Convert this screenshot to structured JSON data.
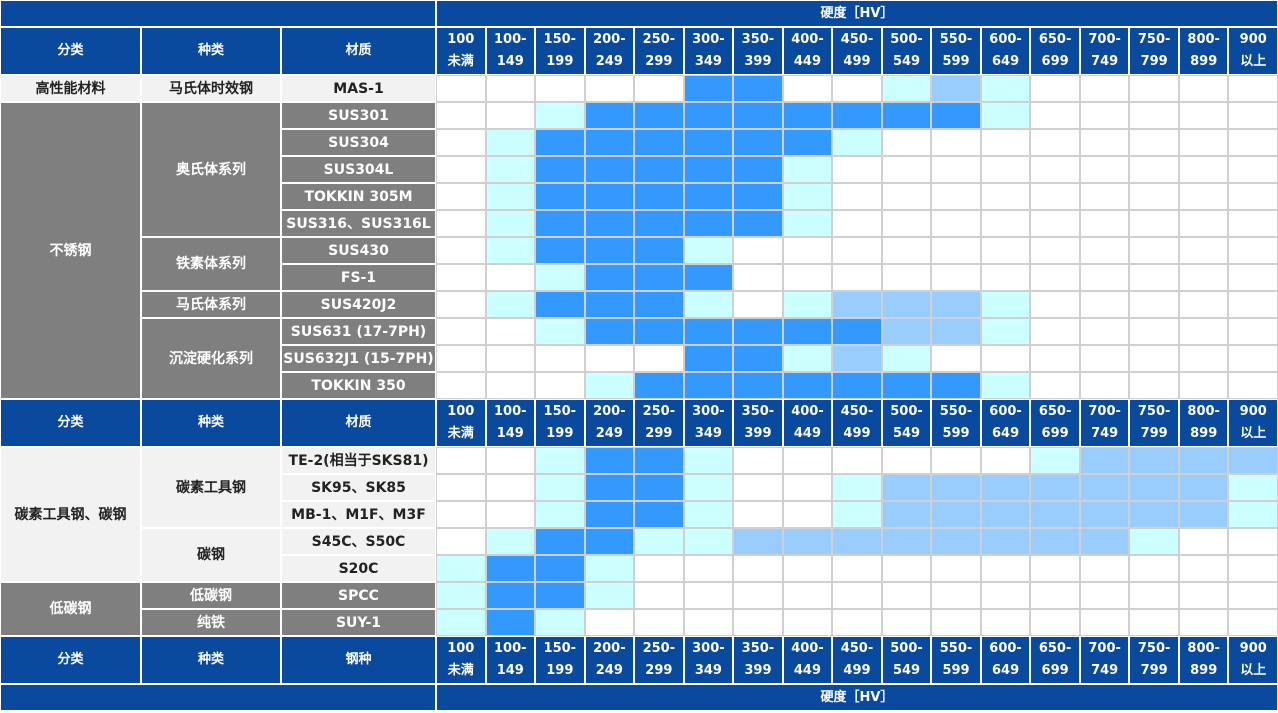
{
  "top_title": "硬度［HV］",
  "bottom_title": "硬度［HV］",
  "blocks": [
    {
      "header": {
        "category": "分类",
        "kind": "种类",
        "material": "材质",
        "ranges": [
          [
            "100",
            "未满"
          ],
          [
            "100-",
            "149"
          ],
          [
            "150-",
            "199"
          ],
          [
            "200-",
            "249"
          ],
          [
            "250-",
            "299"
          ],
          [
            "300-",
            "349"
          ],
          [
            "350-",
            "399"
          ],
          [
            "400-",
            "449"
          ],
          [
            "450-",
            "499"
          ],
          [
            "500-",
            "549"
          ],
          [
            "550-",
            "599"
          ],
          [
            "600-",
            "649"
          ],
          [
            "650-",
            "699"
          ],
          [
            "700-",
            "749"
          ],
          [
            "750-",
            "799"
          ],
          [
            "800-",
            "899"
          ],
          [
            "900",
            "以上"
          ]
        ]
      },
      "groups": [
        {
          "name": "高性能材料",
          "color": "#f2f2f2",
          "subgroups": [
            {
              "name": "马氏体时效钢",
              "rows": [
                {
                  "material": "MAS-1",
                  "cells": [
                    "#fff",
                    "#fff",
                    "#fff",
                    "#fff",
                    "#fff",
                    "#39f",
                    "#39f",
                    "#fff",
                    "#fff",
                    "#cff",
                    "#9cf",
                    "#cff",
                    "#fff",
                    "#fff",
                    "#fff",
                    "#fff",
                    "#fff"
                  ]
                }
              ]
            }
          ]
        },
        {
          "name": "不锈钢",
          "color": "#7f7f7f",
          "subgroups": [
            {
              "name": "奥氏体系列",
              "rows": [
                {
                  "material": "SUS301",
                  "cells": [
                    "#fff",
                    "#fff",
                    "#cff",
                    "#39f",
                    "#39f",
                    "#39f",
                    "#39f",
                    "#39f",
                    "#39f",
                    "#39f",
                    "#39f",
                    "#cff",
                    "#fff",
                    "#fff",
                    "#fff",
                    "#fff",
                    "#fff"
                  ]
                },
                {
                  "material": "SUS304",
                  "cells": [
                    "#fff",
                    "#cff",
                    "#39f",
                    "#39f",
                    "#39f",
                    "#39f",
                    "#39f",
                    "#39f",
                    "#cff",
                    "#fff",
                    "#fff",
                    "#fff",
                    "#fff",
                    "#fff",
                    "#fff",
                    "#fff",
                    "#fff"
                  ]
                },
                {
                  "material": "SUS304L",
                  "cells": [
                    "#fff",
                    "#cff",
                    "#39f",
                    "#39f",
                    "#39f",
                    "#39f",
                    "#39f",
                    "#cff",
                    "#fff",
                    "#fff",
                    "#fff",
                    "#fff",
                    "#fff",
                    "#fff",
                    "#fff",
                    "#fff",
                    "#fff"
                  ]
                },
                {
                  "material": "TOKKIN 305M",
                  "cells": [
                    "#fff",
                    "#cff",
                    "#39f",
                    "#39f",
                    "#39f",
                    "#39f",
                    "#39f",
                    "#cff",
                    "#fff",
                    "#fff",
                    "#fff",
                    "#fff",
                    "#fff",
                    "#fff",
                    "#fff",
                    "#fff",
                    "#fff"
                  ]
                },
                {
                  "material": "SUS316、SUS316L",
                  "cells": [
                    "#fff",
                    "#cff",
                    "#39f",
                    "#39f",
                    "#39f",
                    "#39f",
                    "#39f",
                    "#cff",
                    "#fff",
                    "#fff",
                    "#fff",
                    "#fff",
                    "#fff",
                    "#fff",
                    "#fff",
                    "#fff",
                    "#fff"
                  ]
                }
              ]
            },
            {
              "name": "铁素体系列",
              "rows": [
                {
                  "material": "SUS430",
                  "cells": [
                    "#fff",
                    "#cff",
                    "#39f",
                    "#39f",
                    "#39f",
                    "#cff",
                    "#fff",
                    "#fff",
                    "#fff",
                    "#fff",
                    "#fff",
                    "#fff",
                    "#fff",
                    "#fff",
                    "#fff",
                    "#fff",
                    "#fff"
                  ]
                },
                {
                  "material": "FS-1",
                  "cells": [
                    "#fff",
                    "#fff",
                    "#cff",
                    "#39f",
                    "#39f",
                    "#39f",
                    "#fff",
                    "#fff",
                    "#fff",
                    "#fff",
                    "#fff",
                    "#fff",
                    "#fff",
                    "#fff",
                    "#fff",
                    "#fff",
                    "#fff"
                  ]
                }
              ]
            },
            {
              "name": "马氏体系列",
              "rows": [
                {
                  "material": "SUS420J2",
                  "cells": [
                    "#fff",
                    "#cff",
                    "#39f",
                    "#39f",
                    "#39f",
                    "#cff",
                    "#fff",
                    "#cff",
                    "#9cf",
                    "#9cf",
                    "#9cf",
                    "#cff",
                    "#fff",
                    "#fff",
                    "#fff",
                    "#fff",
                    "#fff"
                  ]
                }
              ]
            },
            {
              "name": "沉淀硬化系列",
              "rows": [
                {
                  "material": "SUS631 (17-7PH)",
                  "cells": [
                    "#fff",
                    "#fff",
                    "#cff",
                    "#39f",
                    "#39f",
                    "#39f",
                    "#39f",
                    "#39f",
                    "#39f",
                    "#9cf",
                    "#9cf",
                    "#cff",
                    "#fff",
                    "#fff",
                    "#fff",
                    "#fff",
                    "#fff"
                  ]
                },
                {
                  "material": "SUS632J1 (15-7PH)",
                  "cells": [
                    "#fff",
                    "#fff",
                    "#fff",
                    "#fff",
                    "#fff",
                    "#39f",
                    "#39f",
                    "#cff",
                    "#9cf",
                    "#cff",
                    "#fff",
                    "#fff",
                    "#fff",
                    "#fff",
                    "#fff",
                    "#fff",
                    "#fff"
                  ]
                },
                {
                  "material": "TOKKIN 350",
                  "cells": [
                    "#fff",
                    "#fff",
                    "#fff",
                    "#cff",
                    "#39f",
                    "#39f",
                    "#39f",
                    "#39f",
                    "#39f",
                    "#39f",
                    "#39f",
                    "#cff",
                    "#fff",
                    "#fff",
                    "#fff",
                    "#fff",
                    "#fff"
                  ]
                }
              ]
            }
          ]
        }
      ]
    },
    {
      "header": {
        "category": "分类",
        "kind": "种类",
        "material": "材质",
        "ranges": [
          [
            "100",
            "未满"
          ],
          [
            "100-",
            "149"
          ],
          [
            "150-",
            "199"
          ],
          [
            "200-",
            "249"
          ],
          [
            "250-",
            "299"
          ],
          [
            "300-",
            "349"
          ],
          [
            "350-",
            "399"
          ],
          [
            "400-",
            "449"
          ],
          [
            "450-",
            "499"
          ],
          [
            "500-",
            "549"
          ],
          [
            "550-",
            "599"
          ],
          [
            "600-",
            "649"
          ],
          [
            "650-",
            "699"
          ],
          [
            "700-",
            "749"
          ],
          [
            "750-",
            "799"
          ],
          [
            "800-",
            "899"
          ],
          [
            "900",
            "以上"
          ]
        ]
      },
      "groups": [
        {
          "name": "碳素工具钢、碳钢",
          "color": "#f2f2f2",
          "subgroups": [
            {
              "name": "碳素工具钢",
              "rows": [
                {
                  "material": "TE-2(相当于SKS81)",
                  "cells": [
                    "#fff",
                    "#fff",
                    "#cff",
                    "#39f",
                    "#39f",
                    "#cff",
                    "#fff",
                    "#fff",
                    "#fff",
                    "#fff",
                    "#fff",
                    "#fff",
                    "#cff",
                    "#9cf",
                    "#9cf",
                    "#9cf",
                    "#9cf"
                  ]
                },
                {
                  "material": "SK95、SK85",
                  "cells": [
                    "#fff",
                    "#fff",
                    "#cff",
                    "#39f",
                    "#39f",
                    "#cff",
                    "#fff",
                    "#fff",
                    "#cff",
                    "#9cf",
                    "#9cf",
                    "#9cf",
                    "#9cf",
                    "#9cf",
                    "#9cf",
                    "#9cf",
                    "#cff"
                  ]
                },
                {
                  "material": "MB-1、M1F、M3F",
                  "cells": [
                    "#fff",
                    "#fff",
                    "#cff",
                    "#39f",
                    "#39f",
                    "#cff",
                    "#fff",
                    "#fff",
                    "#cff",
                    "#9cf",
                    "#9cf",
                    "#9cf",
                    "#9cf",
                    "#9cf",
                    "#9cf",
                    "#9cf",
                    "#cff"
                  ]
                }
              ]
            },
            {
              "name": "碳钢",
              "rows": [
                {
                  "material": "S45C、S50C",
                  "cells": [
                    "#fff",
                    "#cff",
                    "#39f",
                    "#39f",
                    "#cff",
                    "#cff",
                    "#9cf",
                    "#9cf",
                    "#9cf",
                    "#9cf",
                    "#9cf",
                    "#9cf",
                    "#9cf",
                    "#9cf",
                    "#cff",
                    "#fff",
                    "#fff"
                  ]
                },
                {
                  "material": "S20C",
                  "cells": [
                    "#cff",
                    "#39f",
                    "#39f",
                    "#cff",
                    "#fff",
                    "#fff",
                    "#fff",
                    "#fff",
                    "#fff",
                    "#fff",
                    "#fff",
                    "#fff",
                    "#fff",
                    "#fff",
                    "#fff",
                    "#fff",
                    "#fff"
                  ]
                }
              ]
            }
          ]
        },
        {
          "name": "低碳钢",
          "color": "#7f7f7f",
          "subgroups": [
            {
              "name": "低碳钢",
              "rows": [
                {
                  "material": "SPCC",
                  "cells": [
                    "#cff",
                    "#39f",
                    "#39f",
                    "#cff",
                    "#fff",
                    "#fff",
                    "#fff",
                    "#fff",
                    "#fff",
                    "#fff",
                    "#fff",
                    "#fff",
                    "#fff",
                    "#fff",
                    "#fff",
                    "#fff",
                    "#fff"
                  ]
                }
              ]
            },
            {
              "name": "纯铁",
              "rows": [
                {
                  "material": "SUY-1",
                  "cells": [
                    "#cff",
                    "#39f",
                    "#cff",
                    "#fff",
                    "#fff",
                    "#fff",
                    "#fff",
                    "#fff",
                    "#fff",
                    "#fff",
                    "#fff",
                    "#fff",
                    "#fff",
                    "#fff",
                    "#fff",
                    "#fff",
                    "#fff"
                  ]
                }
              ]
            }
          ]
        }
      ]
    },
    {
      "header": {
        "category": "分类",
        "kind": "种类",
        "material": "钢种",
        "ranges": [
          [
            "100",
            "未满"
          ],
          [
            "100-",
            "149"
          ],
          [
            "150-",
            "199"
          ],
          [
            "200-",
            "249"
          ],
          [
            "250-",
            "299"
          ],
          [
            "300-",
            "349"
          ],
          [
            "350-",
            "399"
          ],
          [
            "400-",
            "449"
          ],
          [
            "450-",
            "499"
          ],
          [
            "500-",
            "549"
          ],
          [
            "550-",
            "599"
          ],
          [
            "600-",
            "649"
          ],
          [
            "650-",
            "699"
          ],
          [
            "700-",
            "749"
          ],
          [
            "750-",
            "799"
          ],
          [
            "800-",
            "899"
          ],
          [
            "900",
            "以上"
          ]
        ]
      }
    }
  ]
}
